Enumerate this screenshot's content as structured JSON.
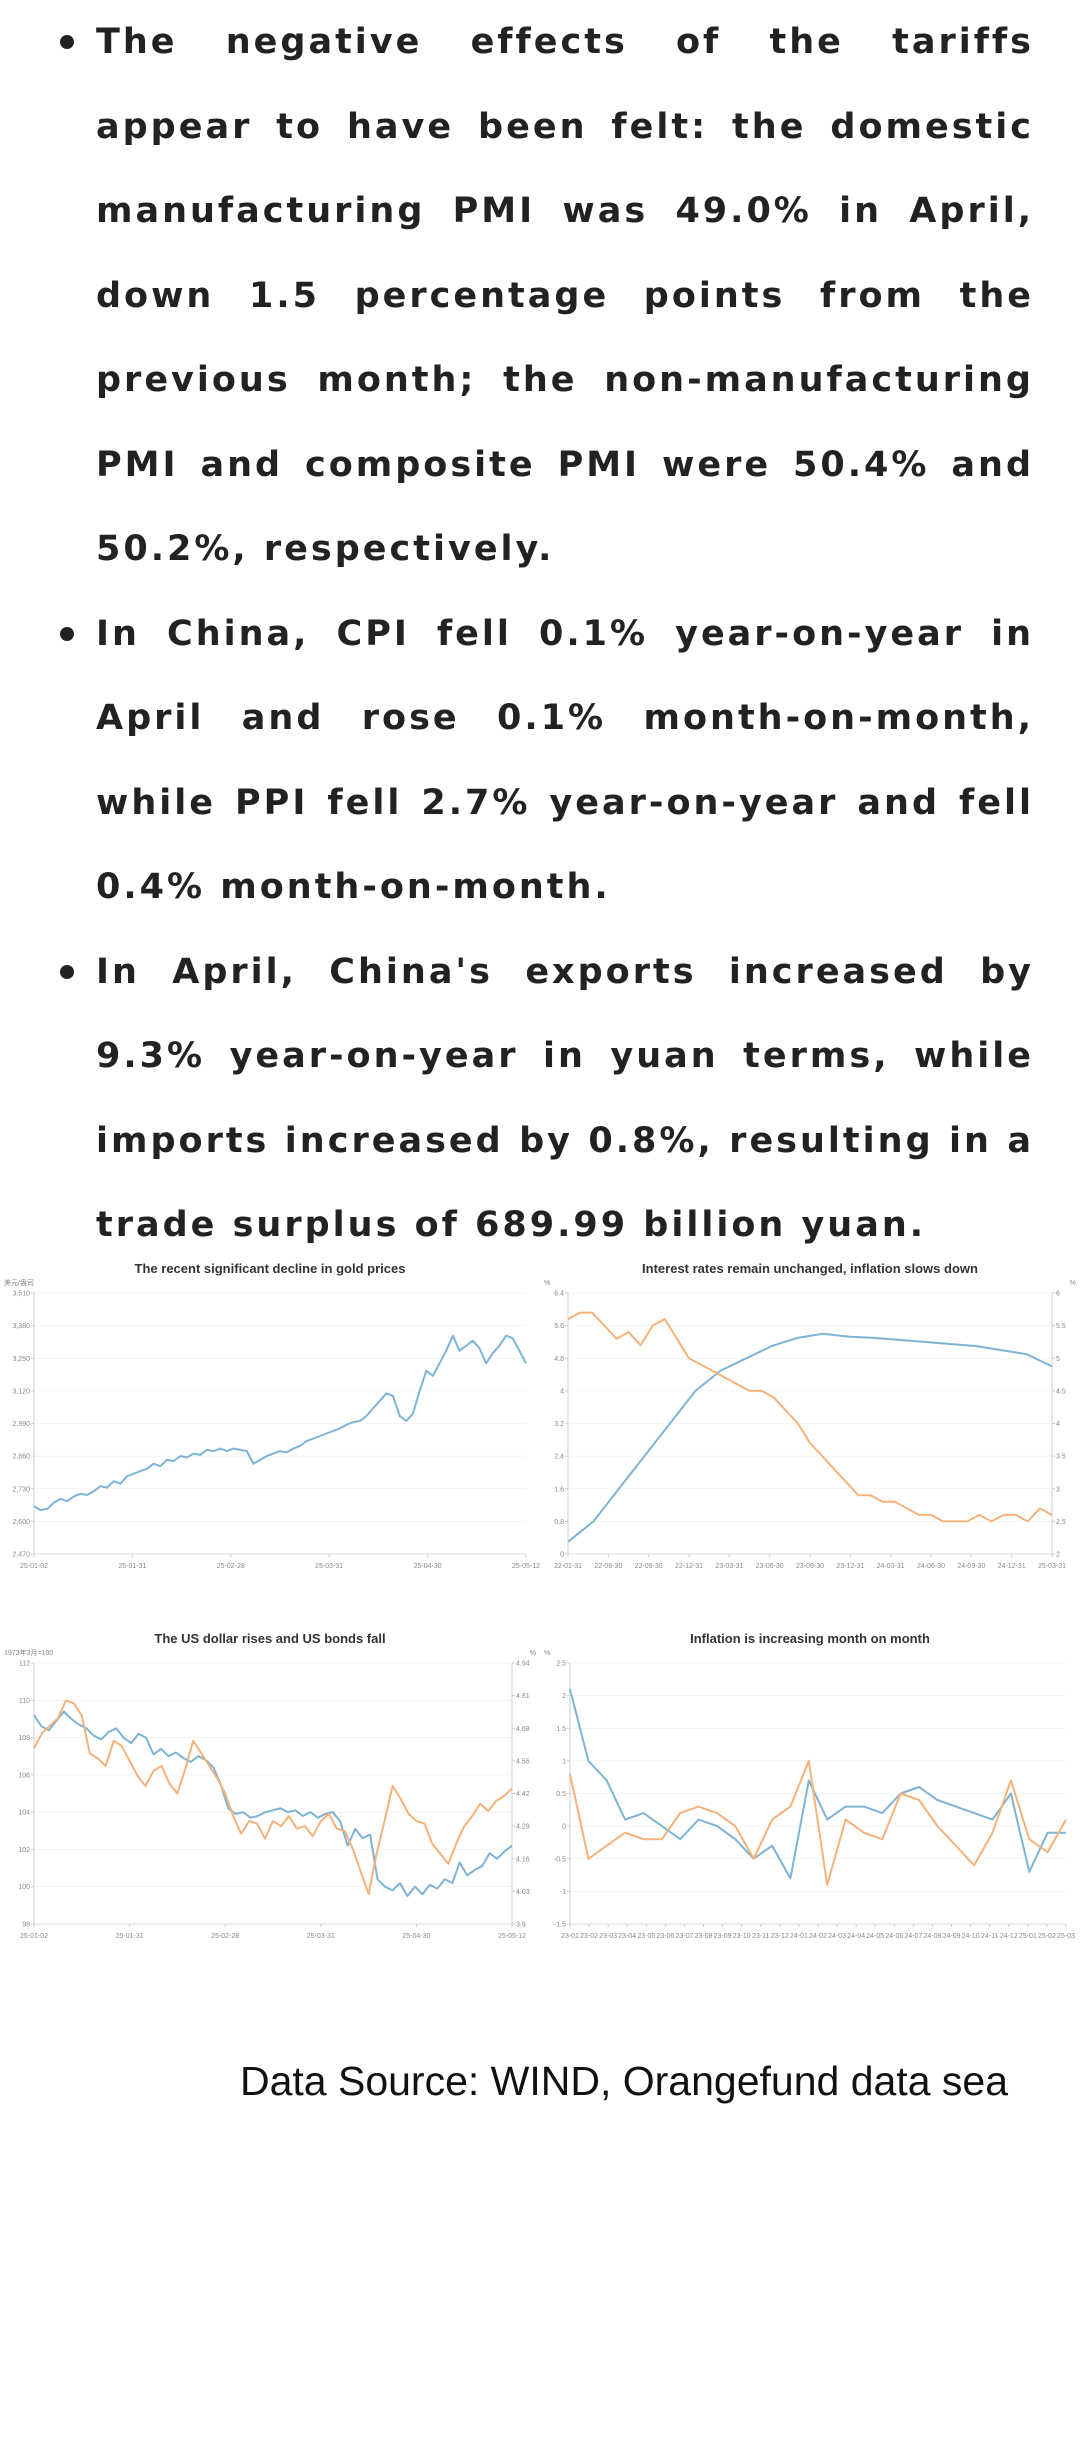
{
  "bullets": [
    "The negative effects of the tariffs appear to have been felt: the domestic manufacturing PMI was 49.0% in April, down 1.5 percentage points from the previous month; the non-manufacturing PMI and composite PMI were 50.4% and 50.2%, respectively.",
    "In China, CPI fell 0.1% year-on-year in April and rose 0.1% month-on-month, while PPI fell 2.7% year-on-year and fell 0.4% month-on-month.",
    "In April, China's exports increased by 9.3% year-on-year in yuan terms, while imports increased by 0.8%, resulting in a trade surplus of 689.99 billion yuan."
  ],
  "colors": {
    "blue": "#7eb3d6",
    "orange": "#f5b27a",
    "axis": "#cfcfcf",
    "grid": "#eeeeee"
  },
  "source": "Data Source: WIND, Orangefund data sea",
  "chart_data": [
    {
      "type": "line",
      "title": "The recent significant decline in gold prices",
      "unit_left": "美元/盎司",
      "x_ticks": [
        "25-01-02",
        "25-01-31",
        "25-02-28",
        "25-03-31",
        "25-04-30",
        "25-05-12"
      ],
      "y_ticks": [
        "2,470",
        "2,600",
        "2,730",
        "2,860",
        "2,990",
        "3,120",
        "3,250",
        "3,380",
        "3,510"
      ],
      "ylim": [
        2470,
        3510
      ],
      "series": [
        {
          "color": "blue",
          "values": [
            2660,
            2645,
            2650,
            2675,
            2690,
            2680,
            2700,
            2710,
            2705,
            2720,
            2740,
            2735,
            2760,
            2750,
            2780,
            2790,
            2800,
            2810,
            2830,
            2820,
            2845,
            2840,
            2860,
            2855,
            2870,
            2865,
            2885,
            2880,
            2890,
            2880,
            2890,
            2885,
            2880,
            2830,
            2845,
            2860,
            2870,
            2880,
            2875,
            2890,
            2900,
            2920,
            2930,
            2940,
            2950,
            2960,
            2970,
            2985,
            2995,
            3000,
            3020,
            3050,
            3080,
            3110,
            3100,
            3020,
            3000,
            3030,
            3120,
            3200,
            3180,
            3230,
            3280,
            3340,
            3280,
            3300,
            3320,
            3290,
            3230,
            3270,
            3300,
            3340,
            3330,
            3280,
            3230
          ]
        }
      ]
    },
    {
      "type": "line",
      "title": "Interest rates remain unchanged, inflation slows down",
      "unit_left": "%",
      "unit_right": "%",
      "x_ticks": [
        "22-01-31",
        "22-06-30",
        "22-09-30",
        "22-12-31",
        "23-03-31",
        "23-06-30",
        "23-09-30",
        "23-12-31",
        "24-03-31",
        "24-06-30",
        "24-09-30",
        "24-12-31",
        "25-03-31"
      ],
      "y_ticks_left": [
        "0",
        "0.8",
        "1.6",
        "2.4",
        "3.2",
        "4",
        "4.8",
        "5.6",
        "6.4"
      ],
      "y_ticks_right": [
        "2",
        "2.5",
        "3",
        "3.5",
        "4",
        "4.5",
        "5",
        "5.5",
        "6"
      ],
      "ylim_left": [
        0,
        6.4
      ],
      "ylim_right": [
        2,
        6
      ],
      "series": [
        {
          "color": "blue",
          "axis": "left",
          "values": [
            0.3,
            0.8,
            1.6,
            2.4,
            3.2,
            4.0,
            4.5,
            4.8,
            5.1,
            5.3,
            5.4,
            5.33,
            5.3,
            5.25,
            5.2,
            5.15,
            5.1,
            5.0,
            4.9,
            4.6
          ]
        },
        {
          "color": "orange",
          "axis": "right",
          "values": [
            5.6,
            5.7,
            5.7,
            5.5,
            5.3,
            5.4,
            5.2,
            5.5,
            5.6,
            5.3,
            5.0,
            4.9,
            4.8,
            4.7,
            4.6,
            4.5,
            4.5,
            4.4,
            4.2,
            4.0,
            3.7,
            3.5,
            3.3,
            3.1,
            2.9,
            2.9,
            2.8,
            2.8,
            2.7,
            2.6,
            2.6,
            2.5,
            2.5,
            2.5,
            2.6,
            2.5,
            2.6,
            2.6,
            2.5,
            2.7,
            2.6
          ]
        }
      ]
    },
    {
      "type": "line",
      "title": "The US dollar rises and US bonds fall",
      "unit_left": "1973年3月=100",
      "unit_right": "%",
      "x_ticks": [
        "25-01-02",
        "25-01-31",
        "25-02-28",
        "25-03-31",
        "25-04-30",
        "25-05-12"
      ],
      "y_ticks_left": [
        "98",
        "100",
        "102",
        "104",
        "106",
        "108",
        "110",
        "112"
      ],
      "y_ticks_right": [
        "3.9",
        "4.03",
        "4.16",
        "4.29",
        "4.42",
        "4.55",
        "4.68",
        "4.81",
        "4.94"
      ],
      "ylim_left": [
        98,
        112
      ],
      "ylim_right": [
        3.9,
        4.94
      ],
      "series": [
        {
          "color": "blue",
          "axis": "left",
          "values": [
            109.2,
            108.6,
            108.4,
            108.9,
            109.4,
            109.0,
            108.7,
            108.5,
            108.1,
            107.9,
            108.3,
            108.5,
            108.0,
            107.7,
            108.2,
            108.0,
            107.1,
            107.4,
            107.0,
            107.2,
            106.9,
            106.7,
            107.0,
            106.8,
            106.4,
            105.5,
            104.2,
            103.9,
            104.0,
            103.7,
            103.8,
            104.0,
            104.1,
            104.2,
            104.0,
            104.1,
            103.8,
            104.0,
            103.7,
            103.9,
            104.0,
            103.5,
            102.2,
            103.1,
            102.6,
            102.8,
            100.4,
            100.0,
            99.8,
            100.2,
            99.5,
            100.0,
            99.6,
            100.1,
            99.9,
            100.4,
            100.2,
            101.3,
            100.6,
            100.9,
            101.1,
            101.8,
            101.5,
            101.9,
            102.2
          ]
        },
        {
          "color": "orange",
          "axis": "right",
          "values": [
            4.6,
            4.66,
            4.69,
            4.72,
            4.79,
            4.78,
            4.73,
            4.58,
            4.56,
            4.53,
            4.63,
            4.61,
            4.55,
            4.49,
            4.45,
            4.51,
            4.53,
            4.46,
            4.42,
            4.52,
            4.63,
            4.58,
            4.53,
            4.48,
            4.42,
            4.33,
            4.26,
            4.31,
            4.3,
            4.24,
            4.31,
            4.29,
            4.33,
            4.28,
            4.29,
            4.25,
            4.31,
            4.34,
            4.28,
            4.27,
            4.2,
            4.11,
            4.02,
            4.18,
            4.31,
            4.45,
            4.4,
            4.34,
            4.31,
            4.3,
            4.22,
            4.18,
            4.14,
            4.22,
            4.29,
            4.33,
            4.38,
            4.35,
            4.39,
            4.41,
            4.44
          ]
        }
      ]
    },
    {
      "type": "line",
      "title": "Inflation is increasing month on month",
      "unit_left": "%",
      "x_ticks": [
        "23-01",
        "23-02",
        "23-03",
        "23-04",
        "23-05",
        "23-06",
        "23-07",
        "23-08",
        "23-09",
        "23-10",
        "23-11",
        "23-12",
        "24-01",
        "24-02",
        "24-03",
        "24-04",
        "24-05",
        "24-06",
        "24-07",
        "24-08",
        "24-09",
        "24-10",
        "24-11",
        "24-12",
        "25-01",
        "25-02",
        "25-03"
      ],
      "y_ticks": [
        "-1.5",
        "-1",
        "-0.5",
        "0",
        "0.5",
        "1",
        "1.5",
        "2",
        "2.5"
      ],
      "ylim": [
        -1.5,
        2.5
      ],
      "series": [
        {
          "color": "blue",
          "values": [
            2.1,
            1.0,
            0.7,
            0.1,
            0.2,
            0.0,
            -0.2,
            0.1,
            0.0,
            -0.2,
            -0.5,
            -0.3,
            -0.8,
            0.7,
            0.1,
            0.3,
            0.3,
            0.2,
            0.5,
            0.6,
            0.4,
            0.3,
            0.2,
            0.1,
            0.5,
            -0.7,
            -0.1,
            -0.1
          ]
        },
        {
          "color": "orange",
          "values": [
            0.8,
            -0.5,
            -0.3,
            -0.1,
            -0.2,
            -0.2,
            0.2,
            0.3,
            0.2,
            0.0,
            -0.5,
            0.1,
            0.3,
            1.0,
            -0.9,
            0.1,
            -0.1,
            -0.2,
            0.5,
            0.4,
            0.0,
            -0.3,
            -0.6,
            -0.1,
            0.7,
            -0.2,
            -0.4,
            0.1
          ]
        }
      ]
    }
  ]
}
